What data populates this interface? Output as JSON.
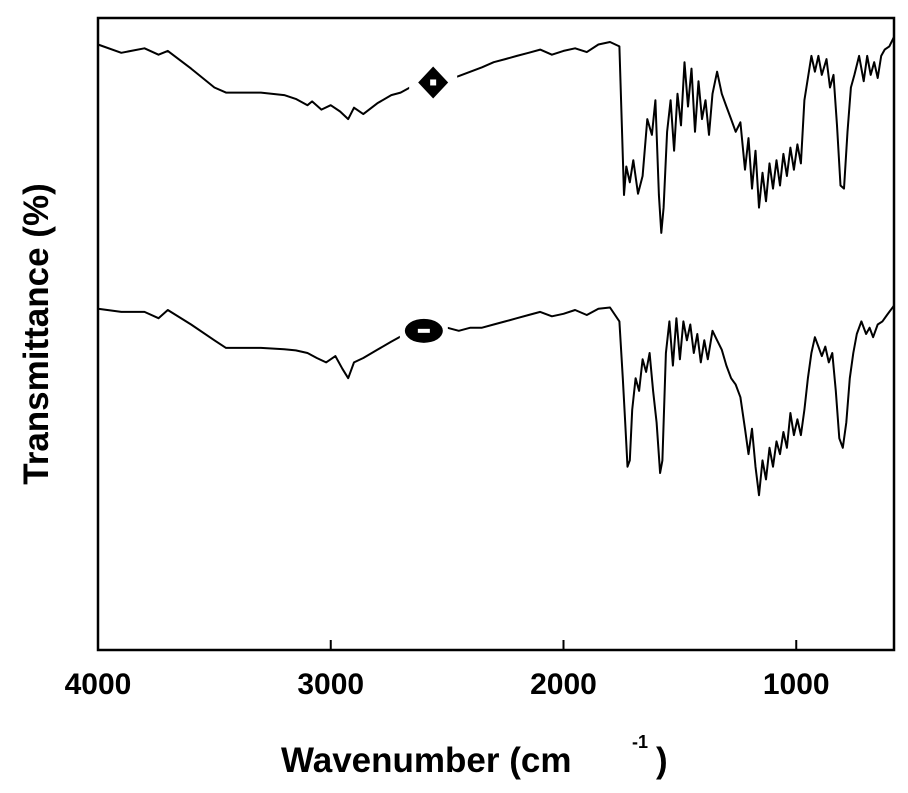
{
  "chart_data": {
    "type": "line",
    "xlabel": "Wavenumber (cm",
    "xlabel_sup": "-1",
    "xlabel_close": ")",
    "ylabel": "Transmittance (%)",
    "xlim": [
      4000,
      580
    ],
    "x_reversed": true,
    "y_ticks_shown": false,
    "grid": false,
    "x_ticks": [
      {
        "value": 4000,
        "label": "4000"
      },
      {
        "value": 3000,
        "label": "3000"
      },
      {
        "value": 2000,
        "label": "2000"
      },
      {
        "value": 1000,
        "label": "1000"
      }
    ],
    "series": [
      {
        "marker": "diamond-open",
        "marker_at": 2560,
        "points": [
          [
            4000,
            0.958
          ],
          [
            3900,
            0.945
          ],
          [
            3800,
            0.952
          ],
          [
            3740,
            0.942
          ],
          [
            3700,
            0.948
          ],
          [
            3600,
            0.92
          ],
          [
            3500,
            0.89
          ],
          [
            3450,
            0.882
          ],
          [
            3400,
            0.882
          ],
          [
            3300,
            0.882
          ],
          [
            3200,
            0.878
          ],
          [
            3150,
            0.872
          ],
          [
            3100,
            0.862
          ],
          [
            3080,
            0.868
          ],
          [
            3040,
            0.855
          ],
          [
            3000,
            0.862
          ],
          [
            2960,
            0.852
          ],
          [
            2925,
            0.84
          ],
          [
            2900,
            0.858
          ],
          [
            2860,
            0.848
          ],
          [
            2800,
            0.865
          ],
          [
            2740,
            0.878
          ],
          [
            2700,
            0.882
          ],
          [
            2650,
            0.892
          ],
          [
            2600,
            0.898
          ],
          [
            2560,
            0.898
          ],
          [
            2500,
            0.902
          ],
          [
            2450,
            0.908
          ],
          [
            2400,
            0.915
          ],
          [
            2350,
            0.922
          ],
          [
            2300,
            0.93
          ],
          [
            2250,
            0.935
          ],
          [
            2200,
            0.94
          ],
          [
            2150,
            0.945
          ],
          [
            2100,
            0.95
          ],
          [
            2050,
            0.942
          ],
          [
            2000,
            0.948
          ],
          [
            1950,
            0.952
          ],
          [
            1900,
            0.946
          ],
          [
            1850,
            0.958
          ],
          [
            1800,
            0.962
          ],
          [
            1760,
            0.955
          ],
          [
            1740,
            0.72
          ],
          [
            1730,
            0.765
          ],
          [
            1715,
            0.74
          ],
          [
            1700,
            0.775
          ],
          [
            1680,
            0.722
          ],
          [
            1660,
            0.75
          ],
          [
            1640,
            0.84
          ],
          [
            1620,
            0.815
          ],
          [
            1605,
            0.87
          ],
          [
            1590,
            0.72
          ],
          [
            1580,
            0.66
          ],
          [
            1570,
            0.7
          ],
          [
            1555,
            0.82
          ],
          [
            1540,
            0.87
          ],
          [
            1525,
            0.79
          ],
          [
            1510,
            0.88
          ],
          [
            1495,
            0.83
          ],
          [
            1480,
            0.93
          ],
          [
            1465,
            0.86
          ],
          [
            1450,
            0.92
          ],
          [
            1435,
            0.82
          ],
          [
            1420,
            0.9
          ],
          [
            1405,
            0.84
          ],
          [
            1390,
            0.87
          ],
          [
            1375,
            0.815
          ],
          [
            1360,
            0.88
          ],
          [
            1340,
            0.915
          ],
          [
            1320,
            0.88
          ],
          [
            1300,
            0.86
          ],
          [
            1280,
            0.84
          ],
          [
            1260,
            0.82
          ],
          [
            1240,
            0.835
          ],
          [
            1220,
            0.76
          ],
          [
            1205,
            0.81
          ],
          [
            1190,
            0.73
          ],
          [
            1175,
            0.79
          ],
          [
            1160,
            0.7
          ],
          [
            1145,
            0.755
          ],
          [
            1130,
            0.71
          ],
          [
            1115,
            0.77
          ],
          [
            1100,
            0.73
          ],
          [
            1085,
            0.775
          ],
          [
            1070,
            0.735
          ],
          [
            1055,
            0.785
          ],
          [
            1040,
            0.75
          ],
          [
            1025,
            0.795
          ],
          [
            1010,
            0.76
          ],
          [
            995,
            0.8
          ],
          [
            980,
            0.77
          ],
          [
            965,
            0.87
          ],
          [
            950,
            0.905
          ],
          [
            935,
            0.94
          ],
          [
            920,
            0.915
          ],
          [
            905,
            0.94
          ],
          [
            890,
            0.91
          ],
          [
            870,
            0.935
          ],
          [
            855,
            0.89
          ],
          [
            840,
            0.91
          ],
          [
            825,
            0.83
          ],
          [
            810,
            0.735
          ],
          [
            795,
            0.73
          ],
          [
            780,
            0.82
          ],
          [
            765,
            0.89
          ],
          [
            750,
            0.91
          ],
          [
            730,
            0.94
          ],
          [
            710,
            0.9
          ],
          [
            695,
            0.94
          ],
          [
            680,
            0.91
          ],
          [
            665,
            0.93
          ],
          [
            650,
            0.905
          ],
          [
            635,
            0.94
          ],
          [
            620,
            0.95
          ],
          [
            600,
            0.955
          ],
          [
            580,
            0.97
          ]
        ]
      },
      {
        "marker": "circle-open",
        "marker_at": 2600,
        "points": [
          [
            4000,
            0.54
          ],
          [
            3900,
            0.535
          ],
          [
            3800,
            0.535
          ],
          [
            3740,
            0.525
          ],
          [
            3700,
            0.538
          ],
          [
            3600,
            0.515
          ],
          [
            3500,
            0.49
          ],
          [
            3450,
            0.478
          ],
          [
            3400,
            0.478
          ],
          [
            3300,
            0.478
          ],
          [
            3200,
            0.476
          ],
          [
            3150,
            0.474
          ],
          [
            3100,
            0.47
          ],
          [
            3060,
            0.462
          ],
          [
            3020,
            0.455
          ],
          [
            2980,
            0.465
          ],
          [
            2950,
            0.445
          ],
          [
            2925,
            0.43
          ],
          [
            2900,
            0.455
          ],
          [
            2860,
            0.462
          ],
          [
            2800,
            0.475
          ],
          [
            2740,
            0.488
          ],
          [
            2700,
            0.496
          ],
          [
            2650,
            0.5
          ],
          [
            2600,
            0.505
          ],
          [
            2550,
            0.505
          ],
          [
            2500,
            0.51
          ],
          [
            2450,
            0.505
          ],
          [
            2400,
            0.51
          ],
          [
            2350,
            0.51
          ],
          [
            2300,
            0.515
          ],
          [
            2250,
            0.52
          ],
          [
            2200,
            0.525
          ],
          [
            2150,
            0.53
          ],
          [
            2100,
            0.535
          ],
          [
            2050,
            0.528
          ],
          [
            2000,
            0.532
          ],
          [
            1950,
            0.538
          ],
          [
            1900,
            0.53
          ],
          [
            1850,
            0.54
          ],
          [
            1800,
            0.542
          ],
          [
            1760,
            0.52
          ],
          [
            1745,
            0.43
          ],
          [
            1735,
            0.36
          ],
          [
            1725,
            0.29
          ],
          [
            1715,
            0.3
          ],
          [
            1705,
            0.38
          ],
          [
            1690,
            0.43
          ],
          [
            1675,
            0.41
          ],
          [
            1660,
            0.46
          ],
          [
            1645,
            0.44
          ],
          [
            1630,
            0.47
          ],
          [
            1615,
            0.41
          ],
          [
            1600,
            0.36
          ],
          [
            1585,
            0.28
          ],
          [
            1575,
            0.3
          ],
          [
            1560,
            0.47
          ],
          [
            1545,
            0.52
          ],
          [
            1530,
            0.45
          ],
          [
            1515,
            0.525
          ],
          [
            1500,
            0.46
          ],
          [
            1485,
            0.52
          ],
          [
            1470,
            0.49
          ],
          [
            1455,
            0.515
          ],
          [
            1440,
            0.47
          ],
          [
            1425,
            0.5
          ],
          [
            1410,
            0.455
          ],
          [
            1395,
            0.49
          ],
          [
            1380,
            0.46
          ],
          [
            1360,
            0.505
          ],
          [
            1340,
            0.49
          ],
          [
            1320,
            0.475
          ],
          [
            1300,
            0.45
          ],
          [
            1280,
            0.43
          ],
          [
            1260,
            0.42
          ],
          [
            1240,
            0.4
          ],
          [
            1220,
            0.35
          ],
          [
            1205,
            0.31
          ],
          [
            1190,
            0.35
          ],
          [
            1175,
            0.29
          ],
          [
            1160,
            0.245
          ],
          [
            1145,
            0.3
          ],
          [
            1130,
            0.27
          ],
          [
            1115,
            0.32
          ],
          [
            1100,
            0.29
          ],
          [
            1085,
            0.33
          ],
          [
            1070,
            0.31
          ],
          [
            1055,
            0.345
          ],
          [
            1040,
            0.32
          ],
          [
            1025,
            0.375
          ],
          [
            1010,
            0.34
          ],
          [
            995,
            0.365
          ],
          [
            980,
            0.34
          ],
          [
            965,
            0.38
          ],
          [
            950,
            0.43
          ],
          [
            935,
            0.47
          ],
          [
            920,
            0.495
          ],
          [
            905,
            0.48
          ],
          [
            890,
            0.465
          ],
          [
            875,
            0.48
          ],
          [
            860,
            0.455
          ],
          [
            845,
            0.47
          ],
          [
            830,
            0.41
          ],
          [
            815,
            0.335
          ],
          [
            800,
            0.32
          ],
          [
            785,
            0.36
          ],
          [
            770,
            0.43
          ],
          [
            755,
            0.47
          ],
          [
            740,
            0.5
          ],
          [
            720,
            0.52
          ],
          [
            700,
            0.5
          ],
          [
            685,
            0.51
          ],
          [
            670,
            0.495
          ],
          [
            650,
            0.515
          ],
          [
            630,
            0.52
          ],
          [
            610,
            0.53
          ],
          [
            590,
            0.54
          ],
          [
            580,
            0.545
          ]
        ]
      }
    ]
  }
}
